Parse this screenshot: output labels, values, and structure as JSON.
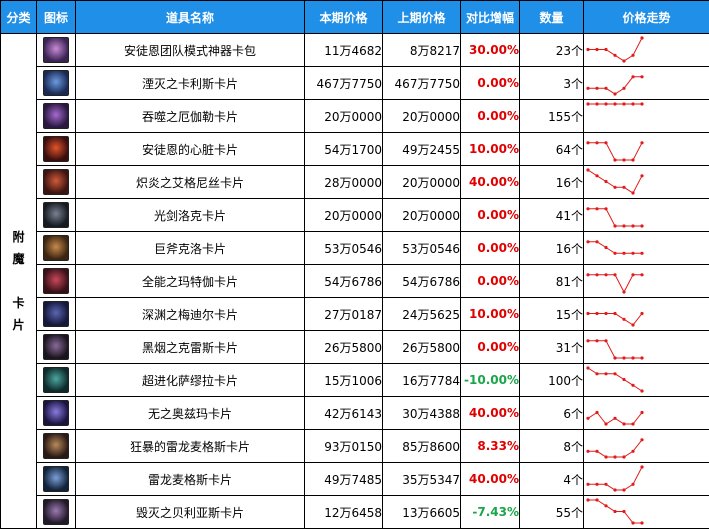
{
  "headers": {
    "category": "分类",
    "icon": "图标",
    "name": "道具名称",
    "current": "本期价格",
    "previous": "上期价格",
    "change": "对比增幅",
    "quantity": "数量",
    "trend": "价格走势"
  },
  "category": {
    "line1": "附",
    "line2": "魔",
    "line3": "卡",
    "line4": "片"
  },
  "colors": {
    "header_bg": "#1f8fe8",
    "increase": "#e00000",
    "decrease": "#1aa64a",
    "sparkline": "#e21a1a"
  },
  "rows": [
    {
      "icon": "card-icon-purple",
      "name": "安徒恩团队模式神器卡包",
      "current": "11万4682",
      "previous": "8万8217",
      "change": "30.00%",
      "direction": "up",
      "qty": "23个",
      "trend": [
        3,
        3,
        3,
        2,
        1,
        2,
        5
      ]
    },
    {
      "icon": "card-icon-blue",
      "name": "湮灭之卡利斯卡片",
      "current": "467万7750",
      "previous": "467万7750",
      "change": "0.00%",
      "direction": "flat",
      "qty": "3个",
      "trend": [
        2,
        2,
        2,
        1,
        2,
        4,
        4
      ]
    },
    {
      "icon": "card-icon-violet",
      "name": "吞噬之厄伽勒卡片",
      "current": "20万0000",
      "previous": "20万0000",
      "change": "0.00%",
      "direction": "flat",
      "qty": "155个",
      "trend": [
        5,
        5,
        5,
        5,
        5,
        5,
        5
      ]
    },
    {
      "icon": "card-icon-red",
      "name": "安徒恩的心脏卡片",
      "current": "54万1700",
      "previous": "49万2455",
      "change": "10.00%",
      "direction": "up",
      "qty": "64个",
      "trend": [
        4,
        4,
        4,
        1,
        1,
        1,
        4
      ]
    },
    {
      "icon": "card-icon-fire",
      "name": "炽炎之艾格尼丝卡片",
      "current": "28万0000",
      "previous": "20万0000",
      "change": "40.00%",
      "direction": "up",
      "qty": "16个",
      "trend": [
        5,
        4,
        3,
        2,
        2,
        1,
        4
      ]
    },
    {
      "icon": "card-icon-dark",
      "name": "光剑洛克卡片",
      "current": "20万0000",
      "previous": "20万0000",
      "change": "0.00%",
      "direction": "flat",
      "qty": "41个",
      "trend": [
        4,
        4,
        4,
        1,
        1,
        1,
        1
      ]
    },
    {
      "icon": "card-icon-brown",
      "name": "巨斧克洛卡片",
      "current": "53万0546",
      "previous": "53万0546",
      "change": "0.00%",
      "direction": "flat",
      "qty": "16个",
      "trend": [
        4,
        4,
        3,
        2,
        2,
        2,
        2
      ]
    },
    {
      "icon": "card-icon-crimson",
      "name": "全能之玛特伽卡片",
      "current": "54万6786",
      "previous": "54万6786",
      "change": "0.00%",
      "direction": "flat",
      "qty": "81个",
      "trend": [
        4,
        4,
        4,
        4,
        1,
        4,
        4
      ]
    },
    {
      "icon": "card-icon-navy",
      "name": "深渊之梅迪尔卡片",
      "current": "27万0187",
      "previous": "24万5625",
      "change": "10.00%",
      "direction": "up",
      "qty": "15个",
      "trend": [
        3,
        3,
        3,
        3,
        2,
        1,
        3
      ]
    },
    {
      "icon": "card-icon-shadow",
      "name": "黑烟之克雷斯卡片",
      "current": "26万5800",
      "previous": "26万5800",
      "change": "0.00%",
      "direction": "flat",
      "qty": "31个",
      "trend": [
        4,
        4,
        4,
        1,
        1,
        1,
        1
      ]
    },
    {
      "icon": "card-icon-teal",
      "name": "超进化萨缪拉卡片",
      "current": "15万1006",
      "previous": "16万7784",
      "change": "-10.00%",
      "direction": "down",
      "qty": "100个",
      "trend": [
        5,
        4,
        4,
        4,
        3,
        2,
        1
      ]
    },
    {
      "icon": "card-icon-indigo",
      "name": "无之奥兹玛卡片",
      "current": "42万6143",
      "previous": "30万4388",
      "change": "40.00%",
      "direction": "up",
      "qty": "6个",
      "trend": [
        2,
        3,
        1,
        2,
        1,
        1,
        3
      ]
    },
    {
      "icon": "card-icon-dragon",
      "name": "狂暴的雷龙麦格斯卡片",
      "current": "93万0150",
      "previous": "85万8600",
      "change": "8.33%",
      "direction": "up",
      "qty": "8个",
      "trend": [
        2,
        2,
        1,
        1,
        1,
        2,
        4
      ]
    },
    {
      "icon": "card-icon-thunder",
      "name": "雷龙麦格斯卡片",
      "current": "49万7485",
      "previous": "35万5347",
      "change": "40.00%",
      "direction": "up",
      "qty": "4个",
      "trend": [
        2,
        2,
        2,
        1,
        1,
        2,
        5
      ]
    },
    {
      "icon": "card-icon-ruin",
      "name": "毁灭之贝利亚斯卡片",
      "current": "12万6458",
      "previous": "13万6605",
      "change": "-7.43%",
      "direction": "down",
      "qty": "55个",
      "trend": [
        5,
        5,
        4,
        3,
        3,
        1,
        1
      ]
    }
  ]
}
